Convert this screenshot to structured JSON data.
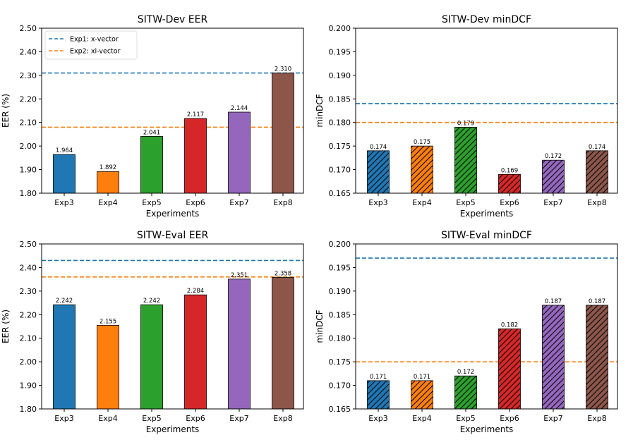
{
  "chart_data": [
    {
      "type": "bar",
      "title": "SITW-Dev EER",
      "xlabel": "Experiments",
      "ylabel": "EER (%)",
      "categories": [
        "Exp3",
        "Exp4",
        "Exp5",
        "Exp6",
        "Exp7",
        "Exp8"
      ],
      "values": [
        1.964,
        1.892,
        2.041,
        2.117,
        2.144,
        2.31
      ],
      "value_labels": [
        "1.964",
        "1.892",
        "2.041",
        "2.117",
        "2.144",
        "2.310"
      ],
      "ylim": [
        1.8,
        2.5
      ],
      "yticks": [
        "1.80",
        "1.90",
        "2.00",
        "2.10",
        "2.20",
        "2.30",
        "2.40",
        "2.50"
      ],
      "hatched": false,
      "reference_lines": [
        {
          "name": "Exp1: x-vector",
          "value": 2.31,
          "color": "#1f77b4"
        },
        {
          "name": "Exp2: xi-vector",
          "value": 2.08,
          "color": "#ff7f0e"
        }
      ],
      "legend": "top-left",
      "bar_colors": [
        "#1f77b4",
        "#ff7f0e",
        "#2ca02c",
        "#d62728",
        "#9467bd",
        "#8c564b"
      ]
    },
    {
      "type": "bar",
      "title": "SITW-Dev minDCF",
      "xlabel": "Experiments",
      "ylabel": "minDCF",
      "categories": [
        "Exp3",
        "Exp4",
        "Exp5",
        "Exp6",
        "Exp7",
        "Exp8"
      ],
      "values": [
        0.174,
        0.175,
        0.179,
        0.169,
        0.172,
        0.174
      ],
      "value_labels": [
        "0.174",
        "0.175",
        "0.179",
        "0.169",
        "0.172",
        "0.174"
      ],
      "ylim": [
        0.165,
        0.2
      ],
      "yticks": [
        "0.165",
        "0.170",
        "0.175",
        "0.180",
        "0.185",
        "0.190",
        "0.195",
        "0.200"
      ],
      "hatched": true,
      "reference_lines": [
        {
          "value": 0.184,
          "color": "#1f77b4"
        },
        {
          "value": 0.18,
          "color": "#ff7f0e"
        }
      ],
      "bar_colors": [
        "#1f77b4",
        "#ff7f0e",
        "#2ca02c",
        "#d62728",
        "#9467bd",
        "#8c564b"
      ]
    },
    {
      "type": "bar",
      "title": "SITW-Eval EER",
      "xlabel": "Experiments",
      "ylabel": "EER (%)",
      "categories": [
        "Exp3",
        "Exp4",
        "Exp5",
        "Exp6",
        "Exp7",
        "Exp8"
      ],
      "values": [
        2.242,
        2.155,
        2.242,
        2.284,
        2.351,
        2.358
      ],
      "value_labels": [
        "2.242",
        "2.155",
        "2.242",
        "2.284",
        "2.351",
        "2.358"
      ],
      "ylim": [
        1.8,
        2.5
      ],
      "yticks": [
        "1.80",
        "1.90",
        "2.00",
        "2.10",
        "2.20",
        "2.30",
        "2.40",
        "2.50"
      ],
      "hatched": false,
      "reference_lines": [
        {
          "value": 2.43,
          "color": "#1f77b4"
        },
        {
          "value": 2.36,
          "color": "#ff7f0e"
        }
      ],
      "bar_colors": [
        "#1f77b4",
        "#ff7f0e",
        "#2ca02c",
        "#d62728",
        "#9467bd",
        "#8c564b"
      ]
    },
    {
      "type": "bar",
      "title": "SITW-Eval minDCF",
      "xlabel": "Experiments",
      "ylabel": "minDCF",
      "categories": [
        "Exp3",
        "Exp4",
        "Exp5",
        "Exp6",
        "Exp7",
        "Exp8"
      ],
      "values": [
        0.171,
        0.171,
        0.172,
        0.182,
        0.187,
        0.187
      ],
      "value_labels": [
        "0.171",
        "0.171",
        "0.172",
        "0.182",
        "0.187",
        "0.187"
      ],
      "ylim": [
        0.165,
        0.2
      ],
      "yticks": [
        "0.165",
        "0.170",
        "0.175",
        "0.180",
        "0.185",
        "0.190",
        "0.195",
        "0.200"
      ],
      "hatched": true,
      "reference_lines": [
        {
          "value": 0.197,
          "color": "#1f77b4"
        },
        {
          "value": 0.175,
          "color": "#ff7f0e"
        }
      ],
      "bar_colors": [
        "#1f77b4",
        "#ff7f0e",
        "#2ca02c",
        "#d62728",
        "#9467bd",
        "#8c564b"
      ]
    }
  ]
}
